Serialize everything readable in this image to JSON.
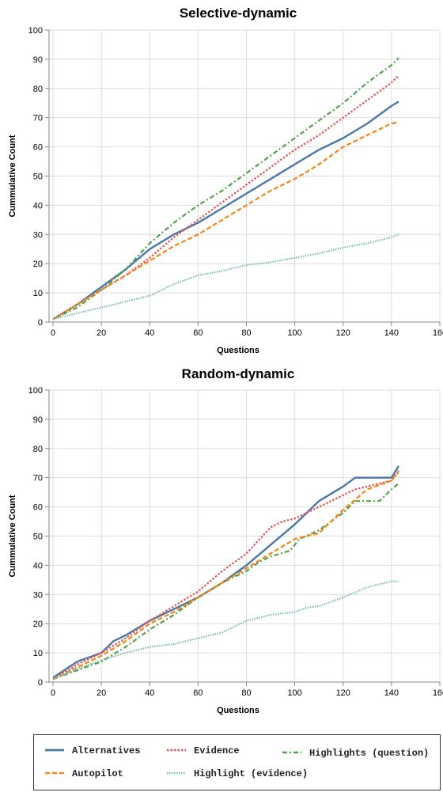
{
  "chart_data": [
    {
      "type": "line",
      "title": "Selective-dynamic",
      "xlabel": "Questions",
      "ylabel": "Cummulative Count",
      "xlim": [
        0,
        160
      ],
      "ylim": [
        0,
        100
      ],
      "xticks": [
        0,
        20,
        40,
        60,
        80,
        100,
        120,
        140,
        160
      ],
      "yticks": [
        0,
        10,
        20,
        30,
        40,
        50,
        60,
        70,
        80,
        90,
        100
      ],
      "grid": true,
      "series": [
        {
          "name": "Alternatives",
          "color": "#4c78a8",
          "dash": "solid",
          "points": [
            [
              0,
              1
            ],
            [
              10,
              6
            ],
            [
              20,
              12
            ],
            [
              30,
              18
            ],
            [
              40,
              25
            ],
            [
              50,
              30
            ],
            [
              60,
              34
            ],
            [
              70,
              39
            ],
            [
              80,
              44
            ],
            [
              90,
              49
            ],
            [
              100,
              54
            ],
            [
              110,
              59
            ],
            [
              120,
              63
            ],
            [
              130,
              68
            ],
            [
              140,
              74
            ],
            [
              143,
              75.5
            ]
          ]
        },
        {
          "name": "Evidence",
          "color": "#e45756",
          "dash": "dot",
          "points": [
            [
              0,
              1
            ],
            [
              10,
              6
            ],
            [
              20,
              11
            ],
            [
              30,
              16
            ],
            [
              40,
              22
            ],
            [
              50,
              29
            ],
            [
              60,
              35
            ],
            [
              70,
              41
            ],
            [
              80,
              47
            ],
            [
              90,
              53
            ],
            [
              100,
              59
            ],
            [
              110,
              64
            ],
            [
              120,
              70
            ],
            [
              130,
              76
            ],
            [
              140,
              82
            ],
            [
              143,
              84.5
            ]
          ]
        },
        {
          "name": "Highlights (question)",
          "color": "#54a24b",
          "dash": "dashdot",
          "points": [
            [
              0,
              1
            ],
            [
              10,
              5
            ],
            [
              20,
              11
            ],
            [
              30,
              18
            ],
            [
              40,
              27
            ],
            [
              50,
              34
            ],
            [
              60,
              40
            ],
            [
              70,
              45
            ],
            [
              80,
              51
            ],
            [
              90,
              57
            ],
            [
              100,
              63
            ],
            [
              110,
              69
            ],
            [
              120,
              75
            ],
            [
              130,
              82
            ],
            [
              140,
              88
            ],
            [
              143,
              90.5
            ]
          ]
        },
        {
          "name": "Autopilot",
          "color": "#f58518",
          "dash": "dash",
          "points": [
            [
              0,
              1
            ],
            [
              10,
              6
            ],
            [
              20,
              11
            ],
            [
              30,
              16
            ],
            [
              40,
              21
            ],
            [
              50,
              26
            ],
            [
              60,
              30
            ],
            [
              70,
              35
            ],
            [
              80,
              40
            ],
            [
              90,
              45
            ],
            [
              100,
              49
            ],
            [
              110,
              54
            ],
            [
              120,
              60
            ],
            [
              130,
              64
            ],
            [
              140,
              68
            ],
            [
              143,
              68.5
            ]
          ]
        },
        {
          "name": "Highlight (evidence)",
          "color": "#72b7b2",
          "dash": "dotted",
          "points": [
            [
              0,
              1
            ],
            [
              10,
              3
            ],
            [
              20,
              5
            ],
            [
              30,
              7
            ],
            [
              40,
              9
            ],
            [
              50,
              13
            ],
            [
              60,
              16
            ],
            [
              70,
              17.5
            ],
            [
              80,
              19.5
            ],
            [
              90,
              20.5
            ],
            [
              100,
              22
            ],
            [
              110,
              23.5
            ],
            [
              120,
              25.5
            ],
            [
              130,
              27
            ],
            [
              140,
              29
            ],
            [
              143,
              30
            ]
          ]
        }
      ]
    },
    {
      "type": "line",
      "title": "Random-dynamic",
      "xlabel": "Questions",
      "ylabel": "Cummulative Count",
      "xlim": [
        0,
        160
      ],
      "ylim": [
        0,
        100
      ],
      "xticks": [
        0,
        20,
        40,
        60,
        80,
        100,
        120,
        140,
        160
      ],
      "yticks": [
        0,
        10,
        20,
        30,
        40,
        50,
        60,
        70,
        80,
        90,
        100
      ],
      "grid": true,
      "series": [
        {
          "name": "Alternatives",
          "color": "#4c78a8",
          "dash": "solid",
          "points": [
            [
              0,
              1.5
            ],
            [
              10,
              7
            ],
            [
              20,
              10
            ],
            [
              25,
              14
            ],
            [
              30,
              16
            ],
            [
              40,
              21
            ],
            [
              50,
              25
            ],
            [
              60,
              29
            ],
            [
              70,
              34
            ],
            [
              80,
              40
            ],
            [
              90,
              47
            ],
            [
              100,
              54
            ],
            [
              110,
              62
            ],
            [
              120,
              67
            ],
            [
              125,
              70
            ],
            [
              130,
              70
            ],
            [
              140,
              70
            ],
            [
              143,
              74
            ]
          ]
        },
        {
          "name": "Evidence",
          "color": "#e45756",
          "dash": "dot",
          "points": [
            [
              0,
              1
            ],
            [
              10,
              6
            ],
            [
              20,
              10
            ],
            [
              30,
              15
            ],
            [
              40,
              21
            ],
            [
              50,
              26
            ],
            [
              60,
              31
            ],
            [
              70,
              38
            ],
            [
              80,
              44
            ],
            [
              90,
              53
            ],
            [
              95,
              55
            ],
            [
              100,
              56
            ],
            [
              110,
              60
            ],
            [
              120,
              64
            ],
            [
              125,
              66
            ],
            [
              130,
              67
            ],
            [
              140,
              69
            ],
            [
              143,
              72
            ]
          ]
        },
        {
          "name": "Highlights (question)",
          "color": "#54a24b",
          "dash": "dashdot",
          "points": [
            [
              0,
              1
            ],
            [
              10,
              4
            ],
            [
              20,
              7
            ],
            [
              30,
              12
            ],
            [
              40,
              18
            ],
            [
              50,
              23
            ],
            [
              60,
              29
            ],
            [
              70,
              34
            ],
            [
              80,
              38
            ],
            [
              85,
              41
            ],
            [
              90,
              43
            ],
            [
              98,
              45
            ],
            [
              102,
              49
            ],
            [
              110,
              52
            ],
            [
              120,
              58
            ],
            [
              125,
              62
            ],
            [
              135,
              62
            ],
            [
              140,
              66
            ],
            [
              143,
              68
            ]
          ]
        },
        {
          "name": "Autopilot",
          "color": "#f58518",
          "dash": "dash",
          "points": [
            [
              0,
              1
            ],
            [
              10,
              5
            ],
            [
              20,
              9
            ],
            [
              30,
              14
            ],
            [
              40,
              20
            ],
            [
              50,
              24
            ],
            [
              60,
              29
            ],
            [
              70,
              34
            ],
            [
              80,
              39
            ],
            [
              90,
              44
            ],
            [
              100,
              49
            ],
            [
              110,
              51
            ],
            [
              120,
              59
            ],
            [
              130,
              66
            ],
            [
              140,
              69
            ],
            [
              143,
              72.5
            ]
          ]
        },
        {
          "name": "Highlight (evidence)",
          "color": "#72b7b2",
          "dash": "dotted",
          "points": [
            [
              0,
              1
            ],
            [
              10,
              4.5
            ],
            [
              20,
              7.5
            ],
            [
              30,
              10
            ],
            [
              40,
              12
            ],
            [
              50,
              13
            ],
            [
              60,
              15
            ],
            [
              70,
              17
            ],
            [
              80,
              21
            ],
            [
              90,
              23
            ],
            [
              100,
              24
            ],
            [
              105,
              25.5
            ],
            [
              110,
              26
            ],
            [
              120,
              29
            ],
            [
              130,
              32.5
            ],
            [
              140,
              34.5
            ],
            [
              143,
              34.5
            ]
          ]
        }
      ]
    }
  ],
  "legend": {
    "placement": "bottom",
    "items": [
      {
        "label": "Alternatives",
        "color": "#4c78a8",
        "dash": "solid"
      },
      {
        "label": "Evidence",
        "color": "#e45756",
        "dash": "dot"
      },
      {
        "label": "Highlights (question)",
        "color": "#54a24b",
        "dash": "dashdot"
      },
      {
        "label": "Autopilot",
        "color": "#f58518",
        "dash": "dash"
      },
      {
        "label": "Highlight (evidence)",
        "color": "#72b7b2",
        "dash": "dotted"
      }
    ]
  }
}
